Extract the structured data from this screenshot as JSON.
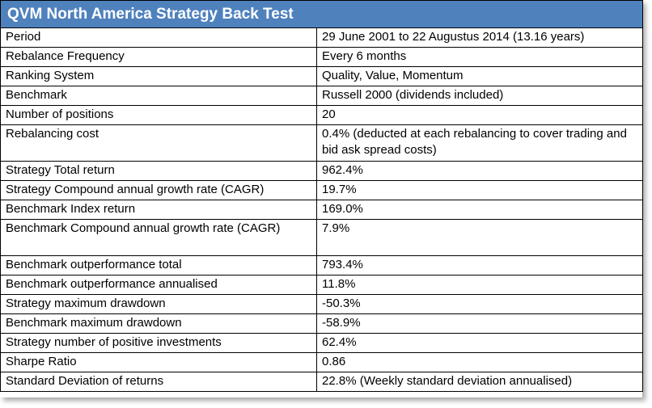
{
  "title": "QVM North America Strategy Back Test",
  "rows": [
    {
      "label": "Period",
      "value": "29 June 2001 to 22 Augustus 2014 (13.16 years)"
    },
    {
      "label": "Rebalance Frequency",
      "value": "Every 6 months"
    },
    {
      "label": "Ranking System",
      "value": "Quality, Value, Momentum"
    },
    {
      "label": "Benchmark",
      "value": "Russell 2000 (dividends included)"
    },
    {
      "label": "Number of positions",
      "value": "20"
    },
    {
      "label": "Rebalancing cost",
      "value": "0.4% (deducted at each rebalancing to cover trading and bid ask spread costs)"
    },
    {
      "label": "Strategy Total return",
      "value": "962.4%"
    },
    {
      "label": "Strategy Compound annual growth rate (CAGR)",
      "value": "19.7%"
    },
    {
      "label": "Benchmark Index return",
      "value": "169.0%"
    },
    {
      "label": "Benchmark Compound annual growth rate (CAGR)",
      "value": "7.9%"
    },
    {
      "label": "Benchmark outperformance total",
      "value": "793.4%"
    },
    {
      "label": "Benchmark outperformance annualised",
      "value": "11.8%"
    },
    {
      "label": "Strategy maximum drawdown",
      "value": "-50.3%"
    },
    {
      "label": "Benchmark maximum drawdown",
      "value": "-58.9%"
    },
    {
      "label": "Strategy number of positive investments",
      "value": "62.4%"
    },
    {
      "label": "Sharpe Ratio",
      "value": "0.86"
    },
    {
      "label": "Standard Deviation of returns",
      "value": "22.8% (Weekly standard deviation annualised)"
    }
  ],
  "colors": {
    "header_background": "#4f81bd",
    "header_text": "#ffffff",
    "border": "#000000"
  }
}
